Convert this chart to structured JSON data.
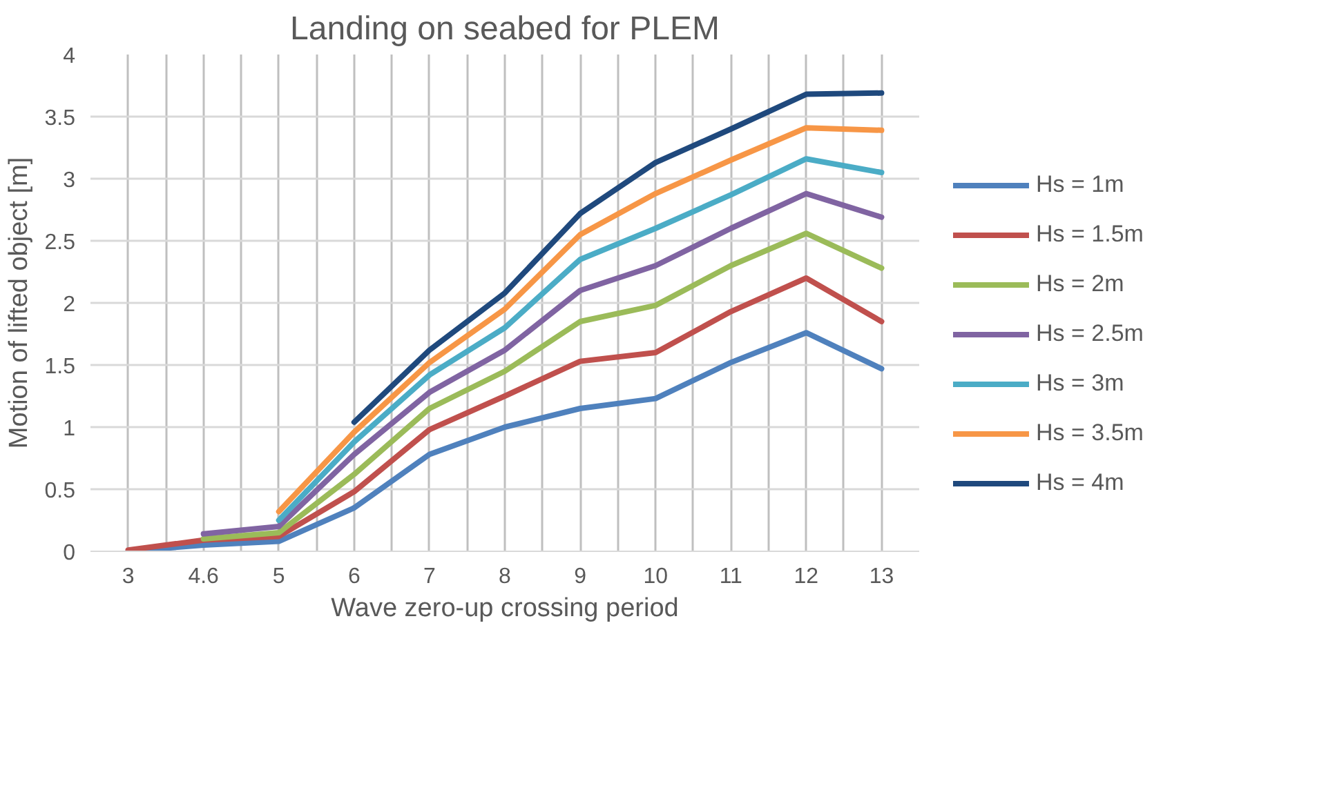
{
  "chart_data": {
    "type": "line",
    "title": "Landing on seabed for PLEM",
    "xlabel": "Wave zero-up crossing period",
    "ylabel": "Motion of lifted object [m]",
    "categories": [
      "3",
      "4.6",
      "5",
      "6",
      "7",
      "8",
      "9",
      "10",
      "11",
      "12",
      "13"
    ],
    "ylim": [
      0,
      4
    ],
    "yticks": [
      0,
      0.5,
      1,
      1.5,
      2,
      2.5,
      3,
      3.5,
      4
    ],
    "grid": true,
    "legend": "right",
    "line_style": "solid",
    "series": [
      {
        "name": "Hs = 1m",
        "color": "#4f81bd",
        "values": [
          0,
          0.05,
          0.08,
          0.35,
          0.78,
          1.0,
          1.15,
          1.23,
          1.52,
          1.76,
          1.47
        ]
      },
      {
        "name": "Hs = 1.5m",
        "color": "#c0504d",
        "values": [
          0.01,
          0.09,
          0.12,
          0.48,
          0.98,
          1.25,
          1.53,
          1.6,
          1.93,
          2.2,
          1.85
        ]
      },
      {
        "name": "Hs = 2m",
        "color": "#9bbb59",
        "values": [
          null,
          0.1,
          0.15,
          0.62,
          1.15,
          1.45,
          1.85,
          1.98,
          2.3,
          2.56,
          2.28
        ]
      },
      {
        "name": "Hs = 2.5m",
        "color": "#8064a2",
        "values": [
          null,
          0.14,
          0.2,
          0.78,
          1.28,
          1.62,
          2.1,
          2.3,
          2.6,
          2.88,
          2.69
        ]
      },
      {
        "name": "Hs = 3m",
        "color": "#4bacc6",
        "values": [
          null,
          null,
          0.25,
          0.88,
          1.42,
          1.8,
          2.35,
          2.6,
          2.87,
          3.16,
          3.05
        ]
      },
      {
        "name": "Hs = 3.5m",
        "color": "#f79646",
        "values": [
          null,
          null,
          0.32,
          0.96,
          1.52,
          1.95,
          2.55,
          2.88,
          3.15,
          3.41,
          3.39
        ]
      },
      {
        "name": "Hs = 4m",
        "color": "#1f497d",
        "values": [
          null,
          null,
          null,
          1.04,
          1.62,
          2.08,
          2.72,
          3.13,
          3.4,
          3.68,
          3.69
        ]
      }
    ]
  }
}
